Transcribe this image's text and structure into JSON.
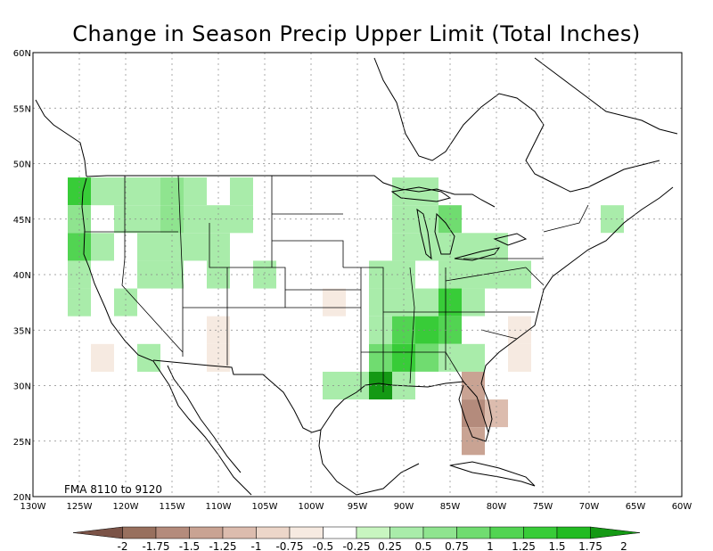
{
  "title": "Change in Season Precip Upper Limit (Total Inches)",
  "period_label": "FMA 8110 to 9120",
  "lat_ticks": [
    "60N",
    "55N",
    "50N",
    "45N",
    "40N",
    "35N",
    "30N",
    "25N",
    "20N"
  ],
  "lon_ticks": [
    "130W",
    "125W",
    "120W",
    "115W",
    "110W",
    "105W",
    "100W",
    "95W",
    "90W",
    "85W",
    "80W",
    "75W",
    "70W",
    "65W",
    "60W"
  ],
  "colorbar": {
    "labels": [
      "-2",
      "-1.75",
      "-1.5",
      "-1.25",
      "-1",
      "-0.75",
      "-0.5",
      "-0.25",
      "0.25",
      "0.5",
      "0.75",
      "1",
      "1.25",
      "1.5",
      "1.75",
      "2"
    ],
    "colors": [
      "#7b5347",
      "#98705e",
      "#b48b7c",
      "#c9a393",
      "#dcbcae",
      "#ecd6c9",
      "#f6eae1",
      "#ffffff",
      "#c8f5c0",
      "#a9ecaa",
      "#8fe48f",
      "#70dc70",
      "#52d452",
      "#38cc38",
      "#22bb22",
      "#149914"
    ]
  },
  "chart_data": {
    "type": "heatmap",
    "title": "Change in Season Precip Upper Limit (Total Inches)",
    "grid_resolution_deg": 2.5,
    "lon_range": [
      -130,
      -60
    ],
    "lat_range": [
      20,
      60
    ],
    "levels": [
      -2,
      -1.75,
      -1.5,
      -1.25,
      -1,
      -0.75,
      -0.5,
      -0.25,
      0.25,
      0.5,
      0.75,
      1,
      1.25,
      1.5,
      1.75,
      2
    ],
    "cells": [
      {
        "lon": -125,
        "lat": 47.5,
        "value": 1.3
      },
      {
        "lon": -125,
        "lat": 45,
        "value": 0.6
      },
      {
        "lon": -125,
        "lat": 42.5,
        "value": 1.1
      },
      {
        "lon": -125,
        "lat": 40,
        "value": 0.5
      },
      {
        "lon": -125,
        "lat": 37.5,
        "value": 0.4
      },
      {
        "lon": -122.5,
        "lat": 47.5,
        "value": 0.5
      },
      {
        "lon": -122.5,
        "lat": 42.5,
        "value": 0.5
      },
      {
        "lon": -122.5,
        "lat": 35,
        "value": -0.3
      },
      {
        "lon": -122.5,
        "lat": 32.5,
        "value": -0.6
      },
      {
        "lon": -120,
        "lat": 47.5,
        "value": 0.4
      },
      {
        "lon": -120,
        "lat": 45,
        "value": 0.3
      },
      {
        "lon": -120,
        "lat": 37.5,
        "value": 0.4
      },
      {
        "lon": -120,
        "lat": 35,
        "value": -0.3
      },
      {
        "lon": -120,
        "lat": 32.5,
        "value": -0.3
      },
      {
        "lon": -120,
        "lat": 30,
        "value": -0.3
      },
      {
        "lon": -117.5,
        "lat": 47.5,
        "value": 0.5
      },
      {
        "lon": -117.5,
        "lat": 45,
        "value": 0.5
      },
      {
        "lon": -117.5,
        "lat": 42.5,
        "value": 0.4
      },
      {
        "lon": -117.5,
        "lat": 40,
        "value": 0.3
      },
      {
        "lon": -117.5,
        "lat": 32.5,
        "value": 0.5
      },
      {
        "lon": -115,
        "lat": 47.5,
        "value": 0.7
      },
      {
        "lon": -115,
        "lat": 45,
        "value": 0.6
      },
      {
        "lon": -115,
        "lat": 42.5,
        "value": 0.4
      },
      {
        "lon": -115,
        "lat": 40,
        "value": 0.4
      },
      {
        "lon": -112.5,
        "lat": 47.5,
        "value": 0.3
      },
      {
        "lon": -112.5,
        "lat": 45,
        "value": 0.5
      },
      {
        "lon": -112.5,
        "lat": 42.5,
        "value": 0.3
      },
      {
        "lon": -112.5,
        "lat": 35,
        "value": -0.3
      },
      {
        "lon": -112.5,
        "lat": 32.5,
        "value": -0.3
      },
      {
        "lon": -110,
        "lat": 45,
        "value": 0.4
      },
      {
        "lon": -110,
        "lat": 42.5,
        "value": 0.5
      },
      {
        "lon": -110,
        "lat": 40,
        "value": 0.3
      },
      {
        "lon": -110,
        "lat": 35,
        "value": -0.5
      },
      {
        "lon": -110,
        "lat": 32.5,
        "value": -0.5
      },
      {
        "lon": -107.5,
        "lat": 47.5,
        "value": 0.3
      },
      {
        "lon": -107.5,
        "lat": 45,
        "value": 0.3
      },
      {
        "lon": -107.5,
        "lat": 37.5,
        "value": -0.3
      },
      {
        "lon": -107.5,
        "lat": 35,
        "value": -0.3
      },
      {
        "lon": -107.5,
        "lat": 32.5,
        "value": -0.3
      },
      {
        "lon": -105,
        "lat": 40,
        "value": 0.4
      },
      {
        "lon": -105,
        "lat": 35,
        "value": -0.3
      },
      {
        "lon": -105,
        "lat": 32.5,
        "value": -0.3
      },
      {
        "lon": -97.5,
        "lat": 37.5,
        "value": -0.5
      },
      {
        "lon": -95,
        "lat": 45,
        "value": -0.3
      },
      {
        "lon": -95,
        "lat": 37.5,
        "value": -0.3
      },
      {
        "lon": -95,
        "lat": 30,
        "value": 0.5
      },
      {
        "lon": -97.5,
        "lat": 30,
        "value": 0.3
      },
      {
        "lon": -97.5,
        "lat": 27.5,
        "value": -0.3
      },
      {
        "lon": -95,
        "lat": 27.5,
        "value": -0.3
      },
      {
        "lon": -92.5,
        "lat": 40,
        "value": 0.3
      },
      {
        "lon": -92.5,
        "lat": 37.5,
        "value": 0.5
      },
      {
        "lon": -92.5,
        "lat": 35,
        "value": 0.5
      },
      {
        "lon": -92.5,
        "lat": 32.5,
        "value": 0.8
      },
      {
        "lon": -92.5,
        "lat": 30,
        "value": 1.8
      },
      {
        "lon": -92.5,
        "lat": 27.5,
        "value": -0.3
      },
      {
        "lon": -90,
        "lat": 47.5,
        "value": 0.3
      },
      {
        "lon": -90,
        "lat": 45,
        "value": 0.5
      },
      {
        "lon": -90,
        "lat": 42.5,
        "value": 0.5
      },
      {
        "lon": -90,
        "lat": 40,
        "value": 0.5
      },
      {
        "lon": -90,
        "lat": 37.5,
        "value": 0.5
      },
      {
        "lon": -90,
        "lat": 35,
        "value": 1.1
      },
      {
        "lon": -90,
        "lat": 32.5,
        "value": 1.3
      },
      {
        "lon": -90,
        "lat": 30,
        "value": 0.5
      },
      {
        "lon": -87.5,
        "lat": 47.5,
        "value": 0.5
      },
      {
        "lon": -87.5,
        "lat": 45,
        "value": 0.3
      },
      {
        "lon": -87.5,
        "lat": 42.5,
        "value": 0.3
      },
      {
        "lon": -87.5,
        "lat": 37.5,
        "value": 0.5
      },
      {
        "lon": -87.5,
        "lat": 35,
        "value": 1.3
      },
      {
        "lon": -87.5,
        "lat": 32.5,
        "value": 0.8
      },
      {
        "lon": -87.5,
        "lat": 30,
        "value": -0.3
      },
      {
        "lon": -85,
        "lat": 45,
        "value": 0.8
      },
      {
        "lon": -85,
        "lat": 42.5,
        "value": 0.5
      },
      {
        "lon": -85,
        "lat": 40,
        "value": 0.5
      },
      {
        "lon": -85,
        "lat": 37.5,
        "value": 1.3
      },
      {
        "lon": -85,
        "lat": 35,
        "value": 1.1
      },
      {
        "lon": -85,
        "lat": 32.5,
        "value": 0.5
      },
      {
        "lon": -85,
        "lat": 30,
        "value": -0.3
      },
      {
        "lon": -82.5,
        "lat": 42.5,
        "value": 0.5
      },
      {
        "lon": -82.5,
        "lat": 40,
        "value": 0.5
      },
      {
        "lon": -82.5,
        "lat": 37.5,
        "value": 0.5
      },
      {
        "lon": -82.5,
        "lat": 35,
        "value": -0.3
      },
      {
        "lon": -82.5,
        "lat": 32.5,
        "value": 0.3
      },
      {
        "lon": -82.5,
        "lat": 30,
        "value": -1.3
      },
      {
        "lon": -82.5,
        "lat": 27.5,
        "value": -1.5
      },
      {
        "lon": -82.5,
        "lat": 25,
        "value": -1.3
      },
      {
        "lon": -80,
        "lat": 42.5,
        "value": 0.4
      },
      {
        "lon": -80,
        "lat": 40,
        "value": 0.4
      },
      {
        "lon": -80,
        "lat": 35,
        "value": -0.3
      },
      {
        "lon": -80,
        "lat": 32.5,
        "value": -0.3
      },
      {
        "lon": -80,
        "lat": 27.5,
        "value": -1.0
      },
      {
        "lon": -80,
        "lat": 25,
        "value": -0.3
      },
      {
        "lon": -77.5,
        "lat": 40,
        "value": 0.3
      },
      {
        "lon": -77.5,
        "lat": 35,
        "value": -0.5
      },
      {
        "lon": -77.5,
        "lat": 32.5,
        "value": -0.5
      },
      {
        "lon": -67.5,
        "lat": 45,
        "value": 0.5
      },
      {
        "lon": -67.5,
        "lat": 42.5,
        "value": -0.3
      }
    ]
  }
}
